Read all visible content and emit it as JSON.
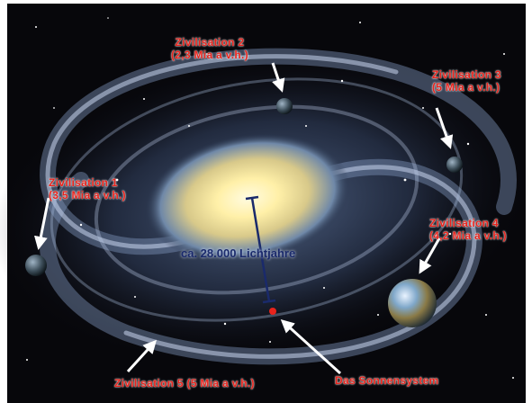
{
  "image": {
    "subject": "milky-way-spiral-galaxy",
    "colors": {
      "background": "#08080c",
      "core": "#fff3b5",
      "arm": "#9fb6d8",
      "label": "#e8231c",
      "measure": "#1a2a6b"
    }
  },
  "distance_label": "ca. 28.000 Lichtjahre",
  "labels": {
    "civ2": {
      "title": "Zivilisation 2",
      "detail": "(2,3 Mia a v.h.)"
    },
    "civ3": {
      "title": "Zivilisation 3",
      "detail": "(5 Mia a v.h.)"
    },
    "civ1": {
      "title": "Zivilisation 1",
      "detail": "(3,5 Mia a v.h.)"
    },
    "civ4": {
      "title": "Zivilisation 4",
      "detail": "(4,2 Mia a v.h.)"
    },
    "civ5": {
      "title": "Zivilisation 5 (5 Mia a v.h.)"
    },
    "sun": {
      "title": "Das Sonnensystem"
    }
  }
}
